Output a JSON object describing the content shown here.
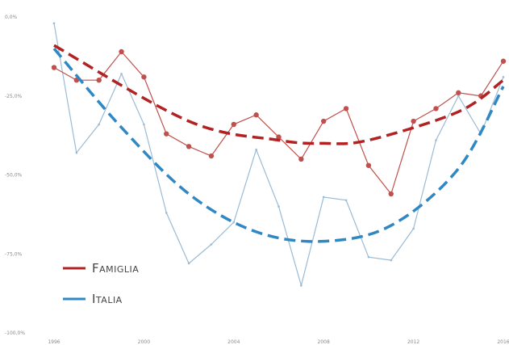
{
  "chart_data": {
    "type": "line",
    "title": "",
    "xlabel": "",
    "ylabel": "",
    "x": [
      1996,
      1997,
      1998,
      1999,
      2000,
      2001,
      2002,
      2003,
      2004,
      2005,
      2006,
      2007,
      2008,
      2009,
      2010,
      2011,
      2012,
      2013,
      2014,
      2015,
      2016
    ],
    "xlim": [
      1996,
      2016
    ],
    "ylim": [
      -100,
      0
    ],
    "y_ticks": [
      {
        "value": 0,
        "label": "0,0%"
      },
      {
        "value": -25,
        "label": "-25,0%"
      },
      {
        "value": -50,
        "label": "-50,0%"
      },
      {
        "value": -75,
        "label": "-75,0%"
      },
      {
        "value": -100,
        "label": "-100,0%"
      }
    ],
    "x_ticks": [
      {
        "value": 1996,
        "label": "1996"
      },
      {
        "value": 2000,
        "label": "2000"
      },
      {
        "value": 2004,
        "label": "2004"
      },
      {
        "value": 2008,
        "label": "2008"
      },
      {
        "value": 2012,
        "label": "2012"
      },
      {
        "value": 2016,
        "label": "2016"
      }
    ],
    "grid": false,
    "legend": {
      "placement": "bottom-left"
    },
    "series": [
      {
        "name": "Famiglia",
        "color": "#c0504d",
        "trend_color": "#b22222",
        "markers": true,
        "values": [
          -16,
          -20,
          -20,
          -11,
          -19,
          -37,
          -41,
          -44,
          -34,
          -31,
          -38,
          -45,
          -33,
          -29,
          -47,
          -56,
          -33,
          -29,
          -24,
          -25,
          -14
        ]
      },
      {
        "name": "Italia",
        "color": "#9bbbd4",
        "trend_color": "#2f88c4",
        "markers": false,
        "values": [
          -2,
          -43,
          -34,
          -18,
          -34,
          -62,
          -78,
          -72,
          -65,
          -42,
          -60,
          -85,
          -57,
          -58,
          -76,
          -77,
          -67,
          -39,
          -25,
          -37,
          -19
        ]
      }
    ],
    "trendlines": [
      {
        "series": "Famiglia",
        "points": [
          [
            1996,
            -9
          ],
          [
            2002,
            -33
          ],
          [
            2006,
            -39
          ],
          [
            2008,
            -40
          ],
          [
            2010,
            -39
          ],
          [
            2014,
            -30
          ],
          [
            2016,
            -20
          ]
        ]
      },
      {
        "series": "Italia",
        "points": [
          [
            1996,
            -10
          ],
          [
            1999,
            -35
          ],
          [
            2002,
            -56
          ],
          [
            2005,
            -68
          ],
          [
            2008,
            -71
          ],
          [
            2011,
            -66
          ],
          [
            2014,
            -48
          ],
          [
            2016,
            -22
          ]
        ]
      }
    ]
  },
  "legend": {
    "items": [
      {
        "label": "Famiglia",
        "color": "#b22222"
      },
      {
        "label": "Italia",
        "color": "#2f88c4"
      }
    ]
  }
}
